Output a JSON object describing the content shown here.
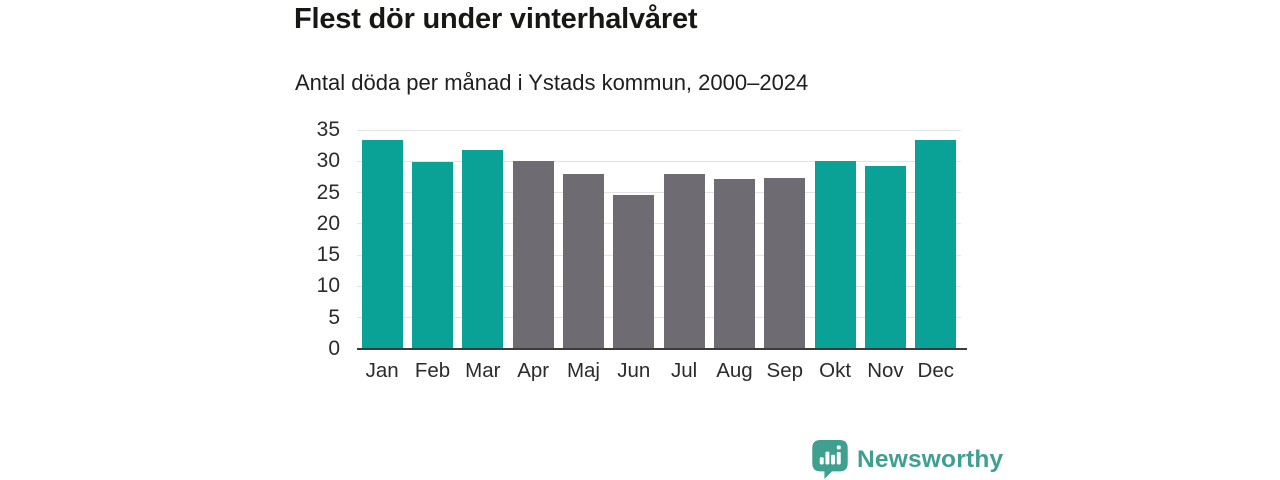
{
  "header": {
    "title": "Flest dör under vinterhalvåret",
    "subtitle": "Antal döda per månad i Ystads kommun, 2000–2024"
  },
  "chart_data": {
    "type": "bar",
    "title": "Flest dör under vinterhalvåret",
    "subtitle": "Antal döda per månad i Ystads kommun, 2000–2024",
    "categories": [
      "Jan",
      "Feb",
      "Mar",
      "Apr",
      "Maj",
      "Jun",
      "Jul",
      "Aug",
      "Sep",
      "Okt",
      "Nov",
      "Dec"
    ],
    "values": [
      33.4,
      29.9,
      31.8,
      30.0,
      27.9,
      24.6,
      28.0,
      27.2,
      27.4,
      30.0,
      29.3,
      33.4
    ],
    "bar_color_keys": [
      "winter",
      "winter",
      "winter",
      "summer",
      "summer",
      "summer",
      "summer",
      "summer",
      "summer",
      "winter",
      "winter",
      "winter"
    ],
    "palette": {
      "winter": "#0aa296",
      "summer": "#6f6b73"
    },
    "xlabel": "",
    "ylabel": "",
    "ylim": [
      0,
      35
    ],
    "yticks": [
      0,
      5,
      10,
      15,
      20,
      25,
      30,
      35
    ],
    "grid": true,
    "legend_position": "none"
  },
  "footer": {
    "brand": "Newsworthy",
    "brand_color": "#3fa092",
    "logo_icon": "bar-chart-speech-bubble-icon"
  },
  "colors": {
    "background": "#ffffff",
    "gridline": "#e4e4e4",
    "axis_line": "#3c3c3c",
    "title_text": "#171714",
    "tick_text": "#2b2b2b"
  }
}
